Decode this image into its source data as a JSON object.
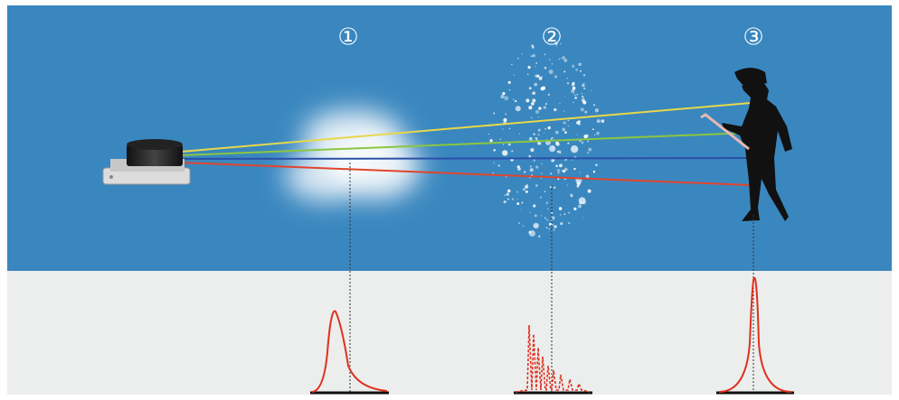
{
  "stages": [
    {
      "label": "①"
    },
    {
      "label": "②"
    },
    {
      "label": "③"
    }
  ]
}
